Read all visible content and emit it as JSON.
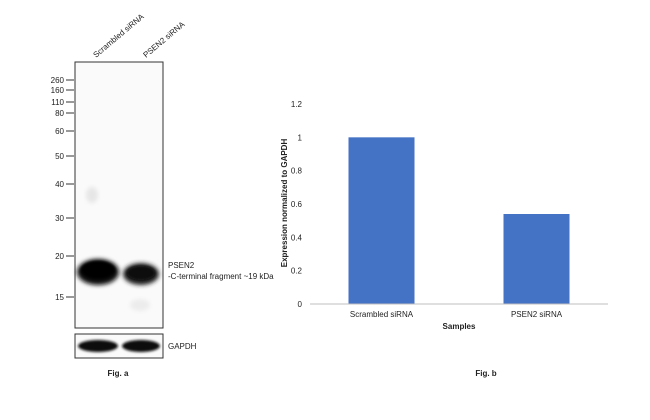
{
  "fig_a": {
    "caption": "Fig. a",
    "lane_labels": [
      "Scrambled siRNA",
      "PSEN2 siRNA"
    ],
    "mw_markers": [
      "260",
      "160",
      "110",
      "80",
      "60",
      "50",
      "40",
      "30",
      "20",
      "15"
    ],
    "band_label_line1": "PSEN2",
    "band_label_line2": "-C-terminal fragment ~19 kDa",
    "loading_control_label": "GAPDH",
    "colors": {
      "band": "#111111",
      "membrane": "#fafafa",
      "border": "#333333"
    }
  },
  "fig_b": {
    "caption": "Fig. b"
  },
  "chart_data": {
    "type": "bar",
    "categories": [
      "Scrambled siRNA",
      "PSEN2 siRNA"
    ],
    "values": [
      1.0,
      0.54
    ],
    "ylabel": "Expression normalized to GAPDH",
    "xlabel": "Samples",
    "ylim": [
      0,
      1.2
    ],
    "yticks": [
      "0",
      "0.2",
      "0.4",
      "0.6",
      "0.8",
      "1",
      "1.2"
    ],
    "grid": false,
    "bar_color": "#4472c4"
  }
}
